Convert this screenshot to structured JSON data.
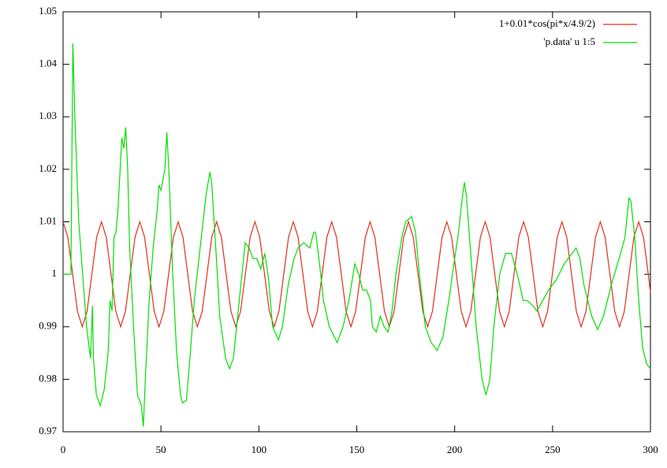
{
  "chart_data": {
    "type": "line",
    "xlim": [
      0,
      300
    ],
    "xticks": [
      0,
      50,
      100,
      150,
      200,
      250,
      300
    ],
    "ylim": [
      0.97,
      1.05
    ],
    "yticks": [
      0.97,
      0.98,
      0.99,
      1,
      1.01,
      1.02,
      1.03,
      1.04,
      1.05
    ],
    "legend": "top-right",
    "series": [
      {
        "name": "1+0.01*cos(pi*x/4.9/2)",
        "color": "#e0301e",
        "x": [
          0,
          2.45,
          4.9,
          7.35,
          9.8,
          12.25,
          14.7,
          17.15,
          19.6,
          22.05,
          24.5,
          26.95,
          29.4,
          31.85,
          34.3,
          36.75,
          39.2,
          41.65,
          44.1,
          46.55,
          49,
          51.45,
          53.9,
          56.35,
          58.8,
          61.25,
          63.7,
          66.15,
          68.6,
          71.05,
          73.5,
          75.95,
          78.4,
          80.85,
          83.3,
          85.75,
          88.2,
          90.65,
          93.1,
          95.55,
          98,
          100.45,
          102.9,
          105.35,
          107.8,
          110.25,
          112.7,
          115.15,
          117.6,
          120.05,
          122.5,
          124.95,
          127.4,
          129.85,
          132.3,
          134.75,
          137.2,
          139.65,
          142.1,
          144.55,
          147,
          149.45,
          151.9,
          154.35,
          156.8,
          159.25,
          161.7,
          164.15,
          166.6,
          169.05,
          171.5,
          173.95,
          176.4,
          178.85,
          181.3,
          183.75,
          186.2,
          188.65,
          191.1,
          193.55,
          196,
          198.45,
          200.9,
          203.35,
          205.8,
          208.25,
          210.7,
          213.15,
          215.6,
          218.05,
          220.5,
          222.95,
          225.4,
          227.85,
          230.3,
          232.75,
          235.2,
          237.65,
          240.1,
          242.55,
          245,
          247.45,
          249.9,
          252.35,
          254.8,
          257.25,
          259.7,
          262.15,
          264.6,
          267.05,
          269.5,
          271.95,
          274.4,
          276.85,
          279.3,
          281.75,
          284.2,
          286.65,
          289.1,
          291.55,
          294,
          296.45,
          298.9,
          300
        ],
        "values": [
          1.01,
          1.00707,
          1,
          0.99293,
          0.99,
          0.99293,
          1,
          1.00707,
          1.01,
          1.00707,
          1,
          0.99293,
          0.99,
          0.99293,
          1,
          1.00707,
          1.01,
          1.00707,
          1,
          0.99293,
          0.99,
          0.99293,
          1,
          1.00707,
          1.01,
          1.00707,
          1,
          0.99293,
          0.99,
          0.99293,
          1,
          1.00707,
          1.01,
          1.00707,
          1,
          0.99293,
          0.99,
          0.99293,
          1,
          1.00707,
          1.01,
          1.00707,
          1,
          0.99293,
          0.99,
          0.99293,
          1,
          1.00707,
          1.01,
          1.00707,
          1,
          0.99293,
          0.99,
          0.99293,
          1,
          1.00707,
          1.01,
          1.00707,
          1,
          0.99293,
          0.99,
          0.99293,
          1,
          1.00707,
          1.01,
          1.00707,
          1,
          0.99293,
          0.99,
          0.99293,
          1,
          1.00707,
          1.01,
          1.00707,
          1,
          0.99293,
          0.99,
          0.99293,
          1,
          1.00707,
          1.01,
          1.00707,
          1,
          0.99293,
          0.99,
          0.99293,
          1,
          1.00707,
          1.01,
          1.00707,
          1,
          0.99293,
          0.99,
          0.99293,
          1,
          1.00707,
          1.01,
          1.00707,
          1,
          0.99293,
          0.99,
          0.99293,
          1,
          1.00707,
          1.01,
          1.00707,
          1,
          0.99293,
          0.99,
          0.99293,
          1,
          1.00707,
          1.01,
          1.00707,
          1,
          0.99293,
          0.99,
          0.99293,
          1,
          1.00707,
          1.01,
          1.00707,
          1,
          0.99653
        ]
      },
      {
        "name": "'p.data' u 1:5",
        "color": "#00e000",
        "x": [
          0,
          4,
          5,
          6,
          7,
          8,
          10,
          12,
          14,
          15,
          15.5,
          17,
          19,
          21,
          23,
          24,
          25,
          26,
          27,
          28,
          30,
          31,
          32,
          33,
          34,
          36,
          38,
          40,
          41,
          42,
          44,
          46,
          48,
          49,
          50,
          52,
          53,
          54,
          56,
          58,
          60,
          61,
          63,
          65,
          67,
          70,
          73,
          75,
          76,
          78,
          80,
          83,
          85,
          87,
          90,
          93,
          95,
          97,
          99,
          101,
          103,
          105,
          107,
          110,
          112,
          115,
          118,
          120,
          123,
          126,
          128,
          129,
          131,
          133,
          136,
          140,
          143,
          146,
          149,
          151,
          153,
          155,
          157,
          158,
          160,
          162,
          164,
          166,
          168,
          170,
          173,
          175,
          178,
          180,
          182,
          185,
          188,
          191,
          194,
          197,
          200,
          202,
          204,
          205,
          206,
          208,
          211,
          214,
          216,
          218,
          220,
          223,
          226,
          229,
          232,
          235,
          237,
          240,
          242,
          245,
          248,
          252,
          256,
          260,
          262,
          264,
          266,
          270,
          273,
          276,
          280,
          284,
          287,
          289,
          290,
          292,
          294,
          296,
          298,
          300
        ],
        "values": [
          1,
          1,
          1.044,
          1.03,
          1.02,
          1.01,
          1,
          0.99,
          0.984,
          0.994,
          0.984,
          0.977,
          0.975,
          0.978,
          0.985,
          0.995,
          0.993,
          1.007,
          1.008,
          1.012,
          1.026,
          1.024,
          1.028,
          1.02,
          1.005,
          0.99,
          0.977,
          0.975,
          0.971,
          0.98,
          0.995,
          1.005,
          1.012,
          1.017,
          1.016,
          1.02,
          1.027,
          1.02,
          1,
          0.985,
          0.977,
          0.9755,
          0.976,
          0.985,
          0.995,
          1.005,
          1.015,
          1.0195,
          1.017,
          1.005,
          0.992,
          0.984,
          0.982,
          0.984,
          0.995,
          1.006,
          1.005,
          1.003,
          1.003,
          1.001,
          1.004,
          0.999,
          0.99,
          0.9875,
          0.99,
          0.998,
          1.003,
          1.005,
          1.006,
          1.005,
          1.008,
          1.008,
          1.002,
          0.995,
          0.99,
          0.987,
          0.99,
          0.995,
          1.002,
          1,
          0.997,
          0.997,
          0.995,
          0.99,
          0.989,
          0.992,
          0.99,
          0.989,
          0.993,
          1,
          1.007,
          1.01,
          1.011,
          1.008,
          1,
          0.99,
          0.987,
          0.9855,
          0.988,
          0.995,
          1.003,
          1.008,
          1.015,
          1.0175,
          1.015,
          1.005,
          0.99,
          0.98,
          0.977,
          0.98,
          0.99,
          1,
          1.004,
          1.004,
          1,
          0.995,
          0.995,
          0.994,
          0.993,
          0.995,
          0.997,
          0.999,
          1.002,
          1.004,
          1.005,
          1.003,
          0.998,
          0.992,
          0.9895,
          0.992,
          0.998,
          1.003,
          1.007,
          1.0145,
          1.014,
          1.007,
          0.995,
          0.986,
          0.983,
          0.982
        ]
      }
    ]
  }
}
